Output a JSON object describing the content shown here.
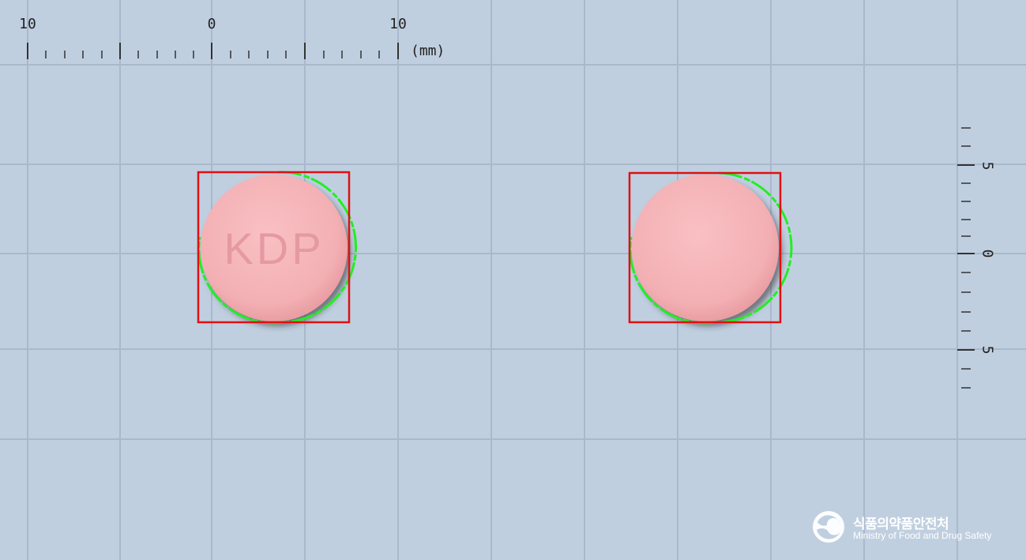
{
  "ruler_horizontal": {
    "labels": [
      "10",
      "0",
      "10"
    ],
    "unit": "(mm)"
  },
  "ruler_vertical": {
    "labels": [
      "5",
      "0",
      "5"
    ]
  },
  "tablets": [
    {
      "side": "front",
      "imprint": "KDP",
      "color": "#f5b3b7"
    },
    {
      "side": "back",
      "imprint": "",
      "color": "#f5b3b7"
    }
  ],
  "overlay_colors": {
    "bounding_box": "#e01010",
    "contour": "#22ee22"
  },
  "logo": {
    "icon": "mfds-emblem-icon",
    "name_korean": "식품의약품안전처",
    "name_english": "Ministry of Food and Drug Safety"
  }
}
